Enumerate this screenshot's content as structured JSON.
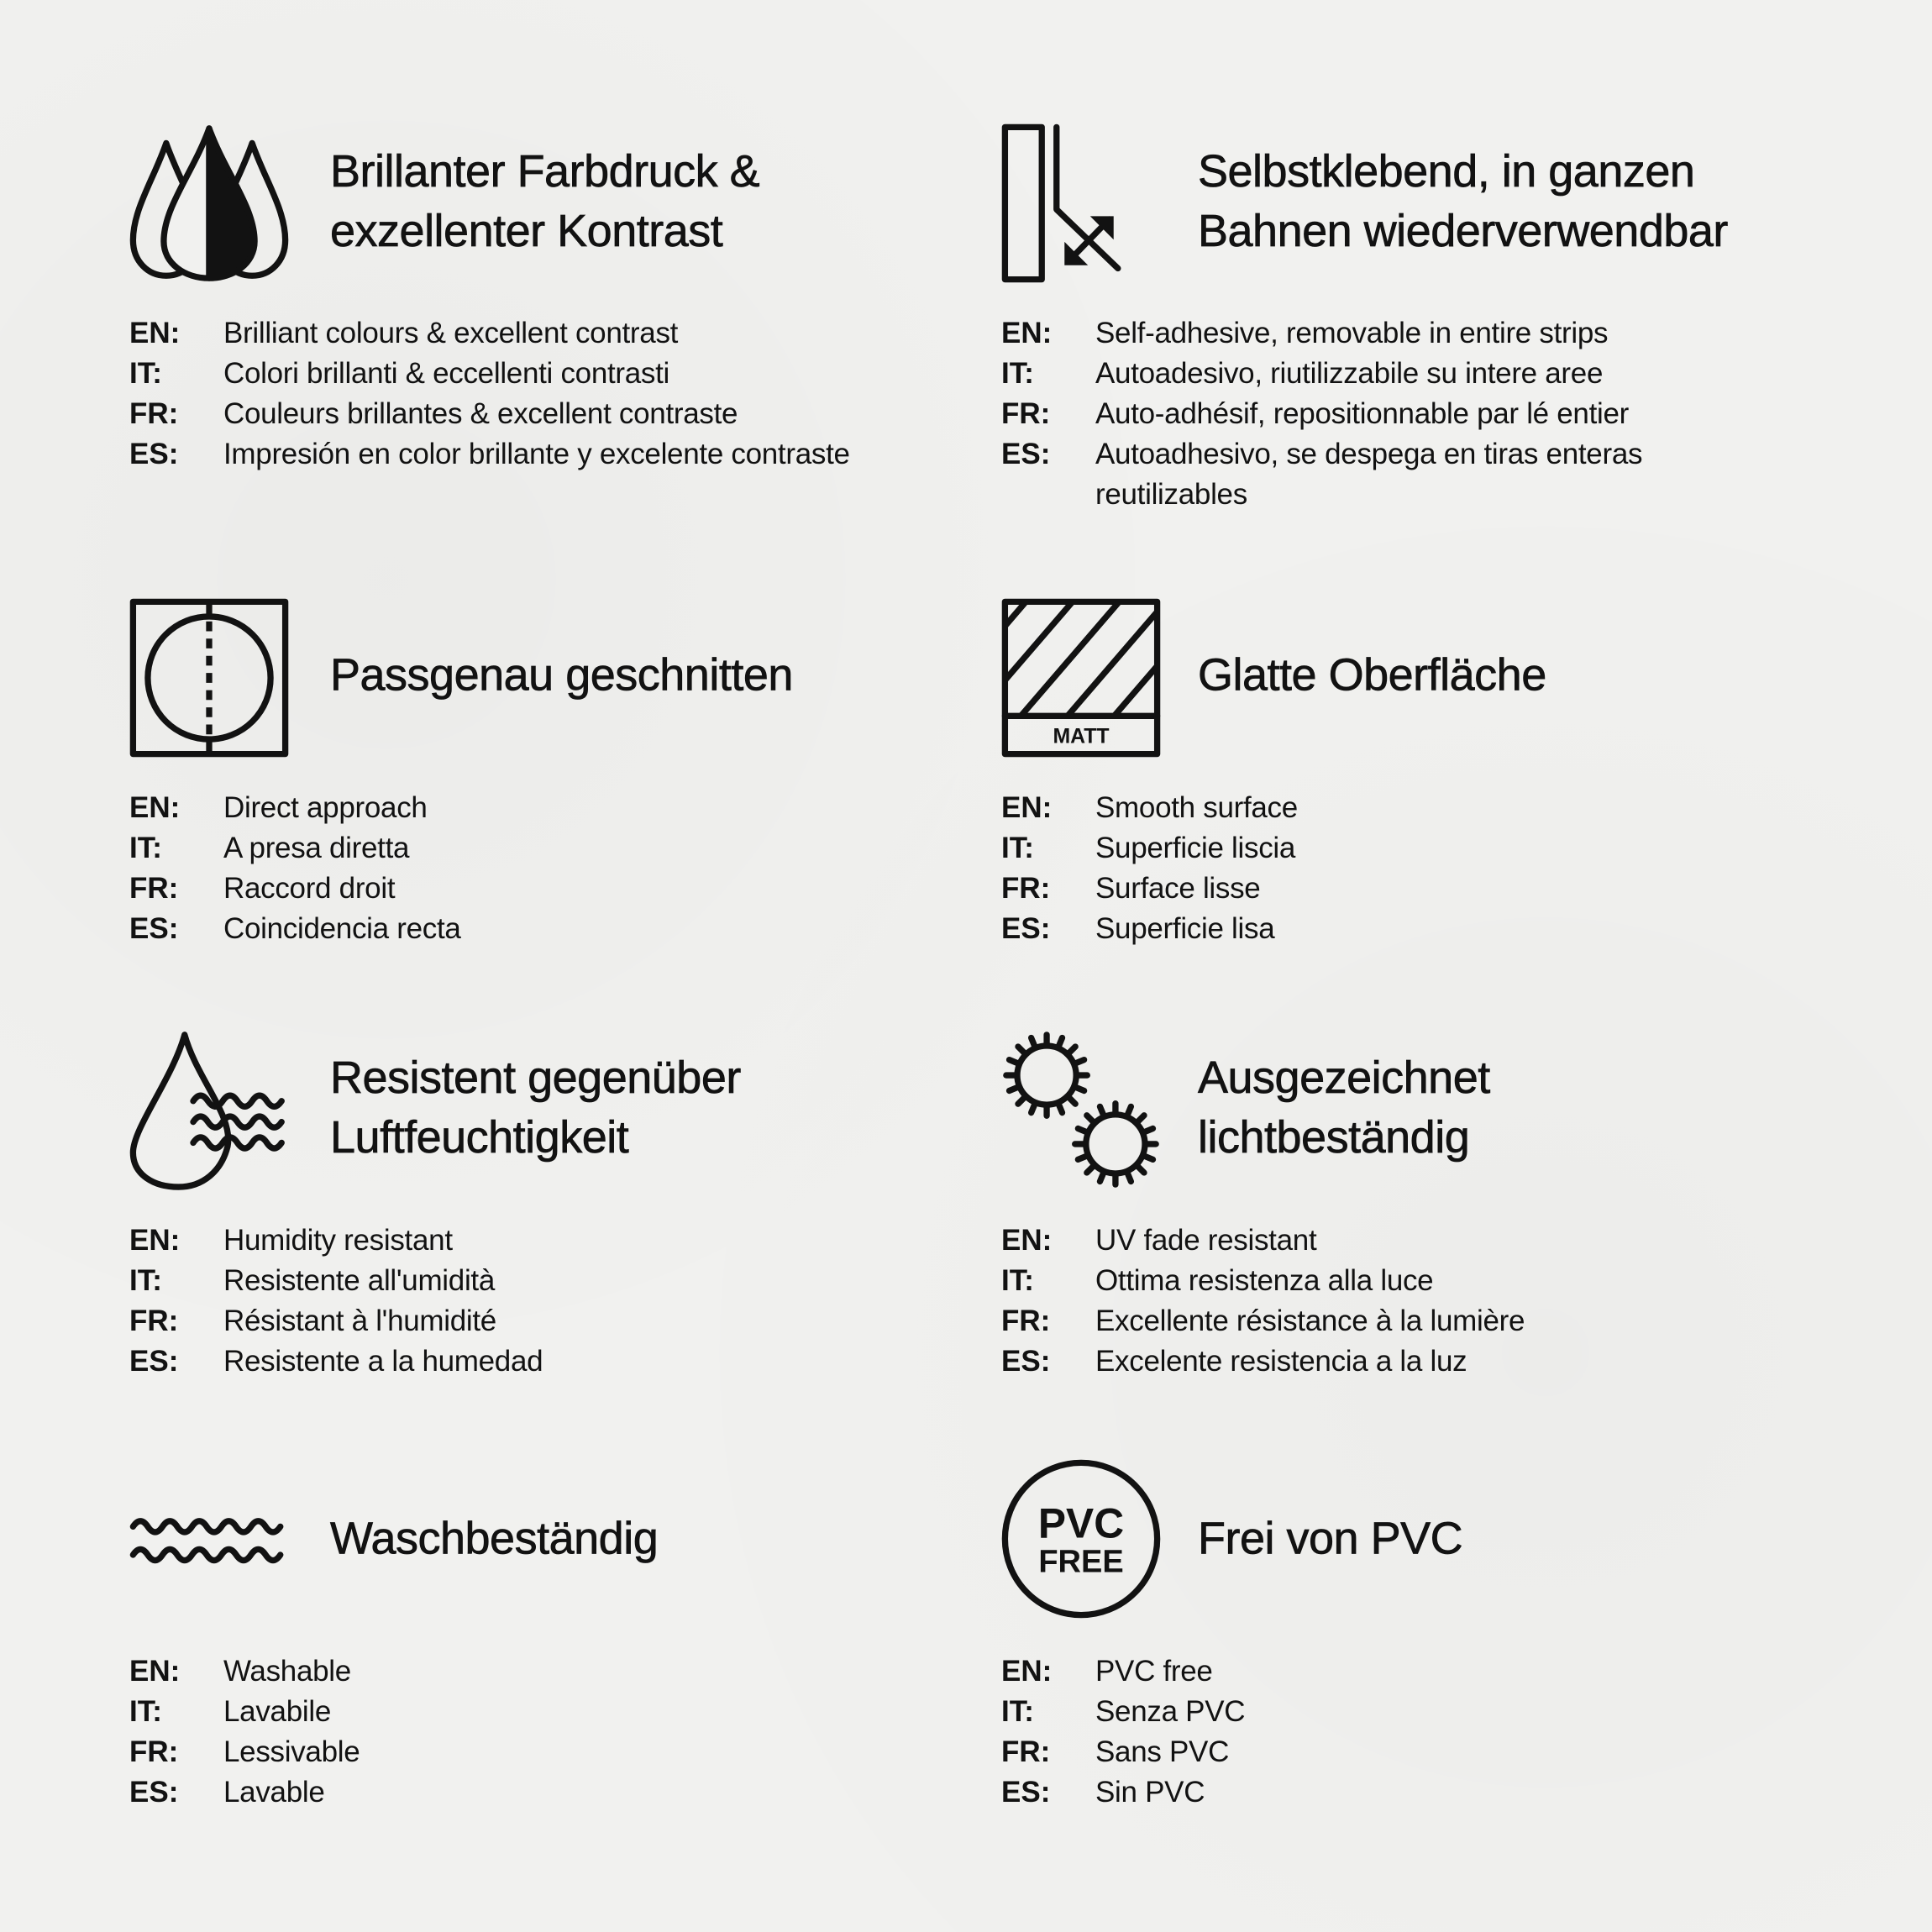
{
  "text_color": "#121212",
  "background_color": "#f1f1ef",
  "sections": [
    {
      "icon": "ink-drops-icon",
      "title": [
        "Brillanter Farbdruck &",
        "exzellenter Kontrast"
      ],
      "rows": [
        {
          "lang": "EN:",
          "text": "Brilliant colours & excellent contrast"
        },
        {
          "lang": "IT:",
          "text": "Colori brillanti & eccellenti contrasti"
        },
        {
          "lang": "FR:",
          "text": "Couleurs brillantes & excellent contraste"
        },
        {
          "lang": "ES:",
          "text": "Impresión en color brillante y excelente contraste"
        }
      ]
    },
    {
      "icon": "peel-off-wall-icon",
      "title": [
        "Selbstklebend, in ganzen",
        "Bahnen wiederverwendbar"
      ],
      "rows": [
        {
          "lang": "EN:",
          "text": "Self-adhesive, removable in entire strips"
        },
        {
          "lang": "IT:",
          "text": "Autoadesivo, riutilizzabile su intere aree"
        },
        {
          "lang": "FR:",
          "text": "Auto-adhésif, repositionnable par lé entier"
        },
        {
          "lang": "ES:",
          "text": "Autoadhesivo, se despega en tiras enteras"
        },
        {
          "lang": "",
          "text": "reutilizables"
        }
      ]
    },
    {
      "icon": "pattern-match-icon",
      "title": [
        "Passgenau geschnitten"
      ],
      "rows": [
        {
          "lang": "EN:",
          "text": "Direct approach"
        },
        {
          "lang": "IT:",
          "text": "A presa diretta"
        },
        {
          "lang": "FR:",
          "text": "Raccord droit"
        },
        {
          "lang": "ES:",
          "text": "Coincidencia recta"
        }
      ]
    },
    {
      "icon": "matt-surface-icon",
      "icon_label": "MATT",
      "title": [
        "Glatte Oberfläche"
      ],
      "rows": [
        {
          "lang": "EN:",
          "text": "Smooth surface"
        },
        {
          "lang": "IT:",
          "text": "Superficie liscia"
        },
        {
          "lang": "FR:",
          "text": "Surface lisse"
        },
        {
          "lang": "ES:",
          "text": "Superficie lisa"
        }
      ]
    },
    {
      "icon": "humidity-drop-icon",
      "title": [
        "Resistent gegenüber",
        "Luftfeuchtigkeit"
      ],
      "rows": [
        {
          "lang": "EN:",
          "text": "Humidity resistant"
        },
        {
          "lang": "IT:",
          "text": "Resistente all'umidità"
        },
        {
          "lang": "FR:",
          "text": "Résistant à l'humidité"
        },
        {
          "lang": "ES:",
          "text": "Resistente a la humedad"
        }
      ]
    },
    {
      "icon": "sun-lightfast-icon",
      "title": [
        "Ausgezeichnet",
        "lichtbeständig"
      ],
      "rows": [
        {
          "lang": "EN:",
          "text": "UV fade resistant"
        },
        {
          "lang": "IT:",
          "text": "Ottima resistenza alla luce"
        },
        {
          "lang": "FR:",
          "text": "Excellente résistance à la lumière"
        },
        {
          "lang": "ES:",
          "text": "Excelente resistencia a la luz"
        }
      ]
    },
    {
      "icon": "waves-washable-icon",
      "title": [
        "Waschbeständig"
      ],
      "rows": [
        {
          "lang": "EN:",
          "text": "Washable"
        },
        {
          "lang": "IT:",
          "text": "Lavabile"
        },
        {
          "lang": "FR:",
          "text": "Lessivable"
        },
        {
          "lang": "ES:",
          "text": "Lavable"
        }
      ]
    },
    {
      "icon": "pvc-free-icon",
      "icon_label": [
        "PVC",
        "FREE"
      ],
      "title": [
        "Frei von PVC"
      ],
      "rows": [
        {
          "lang": "EN:",
          "text": "PVC free"
        },
        {
          "lang": "IT:",
          "text": "Senza PVC"
        },
        {
          "lang": "FR:",
          "text": "Sans PVC"
        },
        {
          "lang": "ES:",
          "text": "Sin PVC"
        }
      ]
    }
  ]
}
